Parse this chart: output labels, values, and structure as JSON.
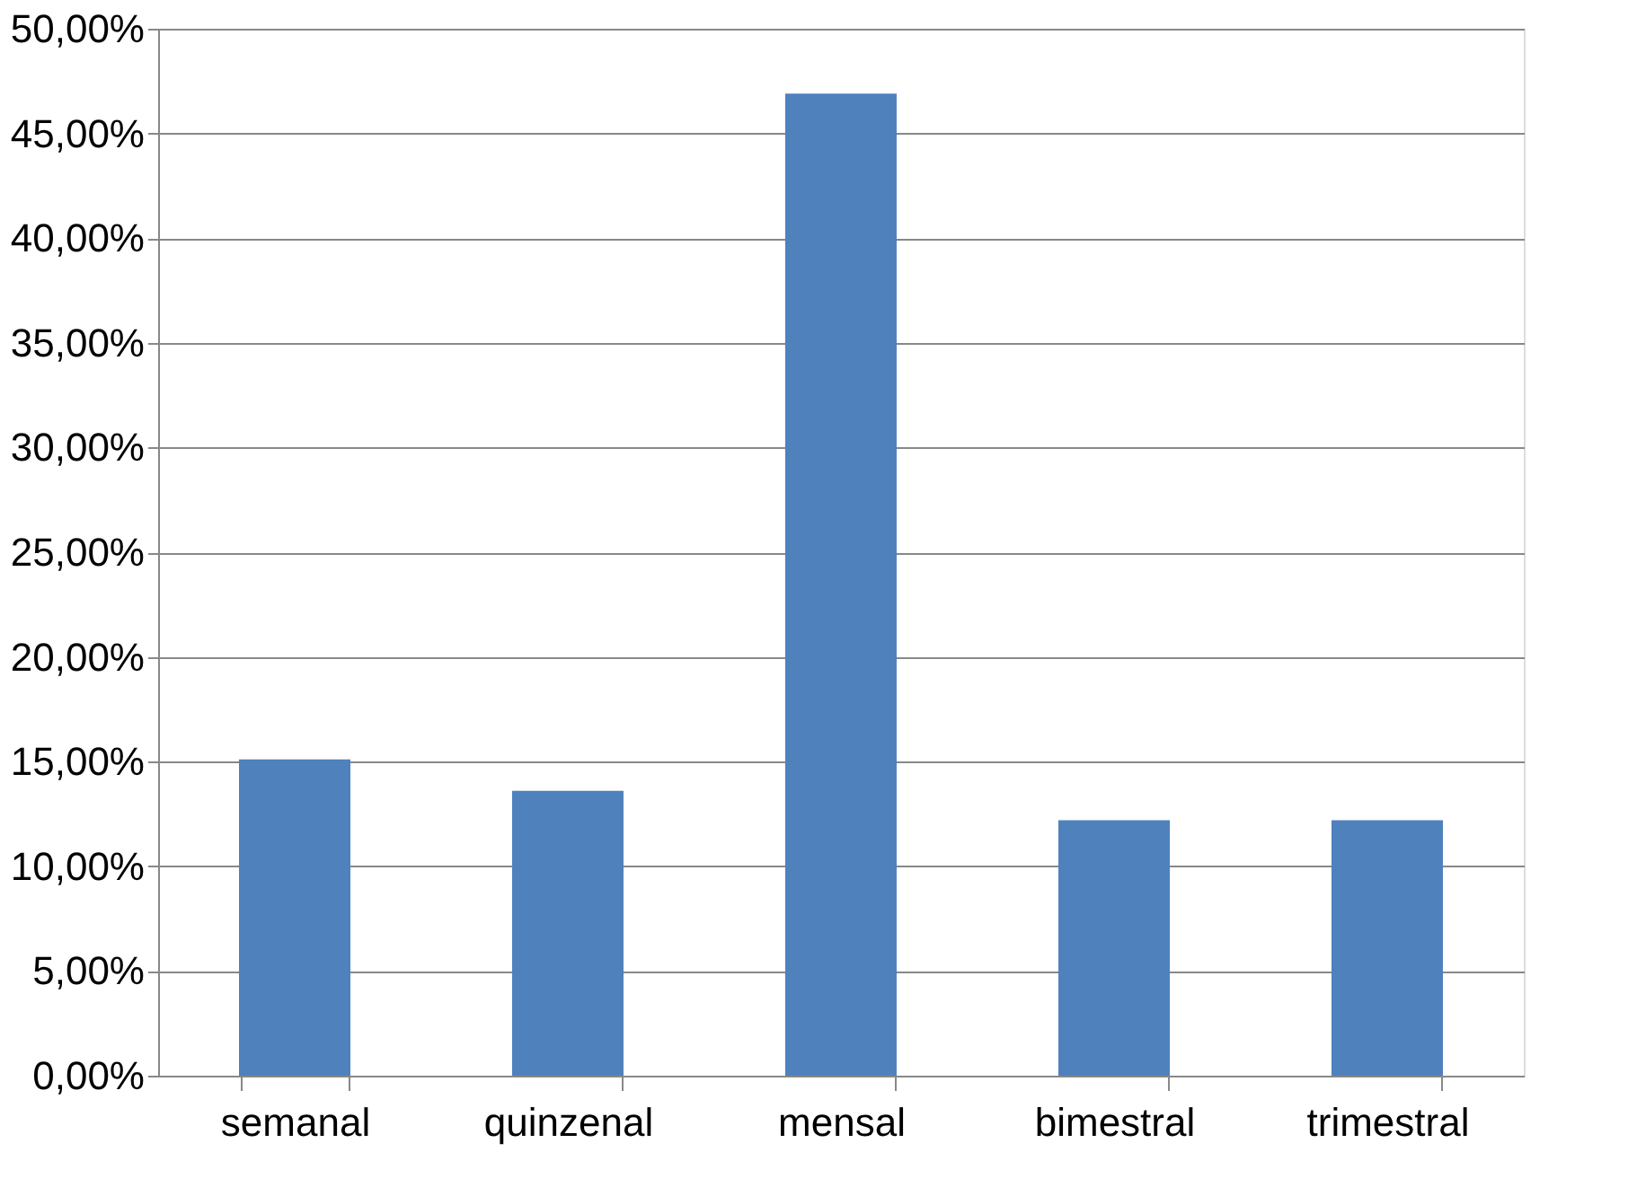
{
  "chart_data": {
    "type": "bar",
    "categories": [
      "semanal",
      "quinzenal",
      "mensal",
      "bimestral",
      "trimestral"
    ],
    "values": [
      15.1,
      13.6,
      46.9,
      12.2,
      12.2
    ],
    "color": "#4f81bd",
    "ylim": [
      0,
      50
    ],
    "yticks": [
      {
        "value": 0,
        "label": "0,00%"
      },
      {
        "value": 5,
        "label": "5,00%"
      },
      {
        "value": 10,
        "label": "10,00%"
      },
      {
        "value": 15,
        "label": "15,00%"
      },
      {
        "value": 20,
        "label": "20,00%"
      },
      {
        "value": 25,
        "label": "25,00%"
      },
      {
        "value": 30,
        "label": "30,00%"
      },
      {
        "value": 35,
        "label": "35,00%"
      },
      {
        "value": 40,
        "label": "40,00%"
      },
      {
        "value": 45,
        "label": "45,00%"
      },
      {
        "value": 50,
        "label": "50,00%"
      }
    ],
    "grid": "y"
  }
}
